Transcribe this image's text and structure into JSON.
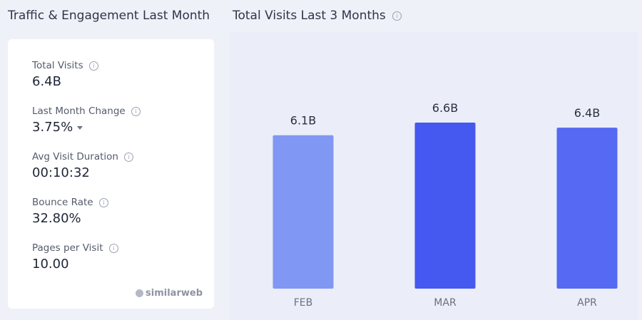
{
  "left_panel": {
    "title": "Traffic & Engagement Last Month",
    "metrics": [
      {
        "label": "Total Visits",
        "value": "6.4B"
      },
      {
        "label": "Last Month Change",
        "value": "3.75%"
      },
      {
        "label": "Avg Visit Duration",
        "value": "00:10:32"
      },
      {
        "label": "Bounce Rate",
        "value": "32.80%"
      },
      {
        "label": "Pages per Visit",
        "value": "10.00"
      }
    ],
    "brand": "similarweb"
  },
  "right_panel": {
    "title": "Total Visits Last 3 Months"
  },
  "info_icon_glyph": "i",
  "chart_data": {
    "type": "bar",
    "categories": [
      "FEB",
      "MAR",
      "APR"
    ],
    "values": [
      6.1,
      6.6,
      6.4
    ],
    "value_labels": [
      "6.1B",
      "6.6B",
      "6.4B"
    ],
    "bar_colors": [
      "#8097f3",
      "#4558f0",
      "#5569f2"
    ],
    "title": "Total Visits Last 3 Months",
    "ylim": [
      0,
      6.8
    ],
    "grid": false,
    "legend": "none"
  },
  "colors": {
    "background": "#eff1f8",
    "card": "#ffffff",
    "chart_background": "#ebeef8"
  }
}
